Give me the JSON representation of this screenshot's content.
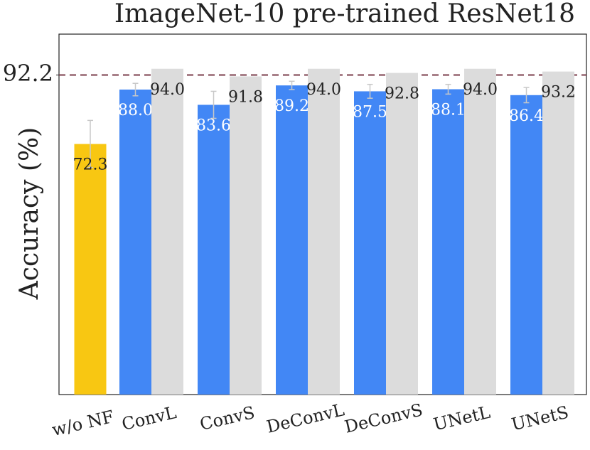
{
  "chart_data": {
    "type": "bar",
    "title": "ImageNet-10 pre-trained ResNet18",
    "y_label": "Accuracy (%)",
    "categories": [
      "w/o NF",
      "ConvL",
      "ConvS",
      "DeConvL",
      "DeConvS",
      "UNetL",
      "UNetS"
    ],
    "series": [
      {
        "color": "#f8c712",
        "values": [
          72.3,
          null,
          null,
          null,
          null,
          null,
          null
        ],
        "errors": [
          6.8,
          null,
          null,
          null,
          null,
          null,
          null
        ],
        "value_labels": [
          "72.3",
          null,
          null,
          null,
          null,
          null,
          null
        ]
      },
      {
        "color": "#4287f5",
        "values": [
          null,
          88.0,
          83.6,
          89.2,
          87.5,
          88.1,
          86.4
        ],
        "errors": [
          null,
          1.8,
          3.9,
          1.2,
          2.0,
          1.4,
          2.2
        ],
        "value_labels": [
          null,
          "88.0",
          "83.6",
          "89.2",
          "87.5",
          "88.1",
          "86.4"
        ]
      },
      {
        "color": "#dcdcdc",
        "values": [
          null,
          94.0,
          91.8,
          94.0,
          92.8,
          94.0,
          93.2
        ],
        "value_labels": [
          null,
          "94.0",
          "91.8",
          "94.0",
          "92.8",
          "94.0",
          "93.2"
        ]
      }
    ],
    "ylim": [
      0,
      104
    ],
    "yticks": [
      92.2
    ],
    "reference_line": {
      "value": 92.2,
      "color": "#7a3b4a"
    }
  }
}
